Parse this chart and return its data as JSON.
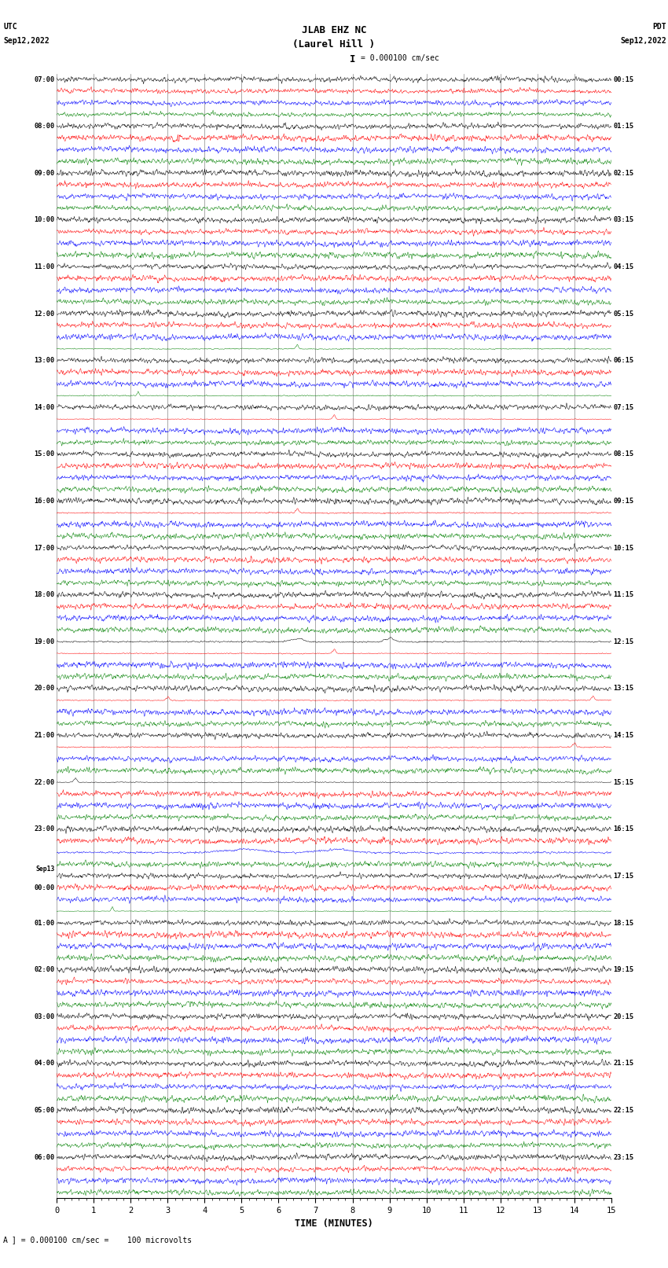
{
  "title_line1": "JLAB EHZ NC",
  "title_line2": "(Laurel Hill )",
  "scale_label": "= 0.000100 cm/sec",
  "left_top": "UTC",
  "left_date": "Sep12,2022",
  "right_top": "PDT",
  "right_date": "Sep12,2022",
  "xlabel": "TIME (MINUTES)",
  "bottom_note": "= 0.000100 cm/sec =    100 microvolts",
  "xmin": 0,
  "xmax": 15,
  "xticks": [
    0,
    1,
    2,
    3,
    4,
    5,
    6,
    7,
    8,
    9,
    10,
    11,
    12,
    13,
    14,
    15
  ],
  "trace_colors": [
    "black",
    "red",
    "blue",
    "green"
  ],
  "bg_color": "white",
  "grid_color": "#888888",
  "num_rows": 96,
  "noise_amplitude": 0.12,
  "fig_width": 8.5,
  "fig_height": 16.13,
  "dpi": 100,
  "row_times_left": [
    "07:00",
    "",
    "",
    "",
    "08:00",
    "",
    "",
    "",
    "09:00",
    "",
    "",
    "",
    "10:00",
    "",
    "",
    "",
    "11:00",
    "",
    "",
    "",
    "12:00",
    "",
    "",
    "",
    "13:00",
    "",
    "",
    "",
    "14:00",
    "",
    "",
    "",
    "15:00",
    "",
    "",
    "",
    "16:00",
    "",
    "",
    "",
    "17:00",
    "",
    "",
    "",
    "18:00",
    "",
    "",
    "",
    "19:00",
    "",
    "",
    "",
    "20:00",
    "",
    "",
    "",
    "21:00",
    "",
    "",
    "",
    "22:00",
    "",
    "",
    "",
    "23:00",
    "",
    "",
    "",
    "Sep13",
    "00:00",
    "",
    "",
    "01:00",
    "",
    "",
    "",
    "02:00",
    "",
    "",
    "",
    "03:00",
    "",
    "",
    "",
    "04:00",
    "",
    "",
    "",
    "05:00",
    "",
    "",
    "",
    "06:00",
    "",
    "",
    ""
  ],
  "row_times_right": [
    "00:15",
    "",
    "",
    "",
    "01:15",
    "",
    "",
    "",
    "02:15",
    "",
    "",
    "",
    "03:15",
    "",
    "",
    "",
    "04:15",
    "",
    "",
    "",
    "05:15",
    "",
    "",
    "",
    "06:15",
    "",
    "",
    "",
    "07:15",
    "",
    "",
    "",
    "08:15",
    "",
    "",
    "",
    "09:15",
    "",
    "",
    "",
    "10:15",
    "",
    "",
    "",
    "11:15",
    "",
    "",
    "",
    "12:15",
    "",
    "",
    "",
    "13:15",
    "",
    "",
    "",
    "14:15",
    "",
    "",
    "",
    "15:15",
    "",
    "",
    "",
    "16:15",
    "",
    "",
    "",
    "17:15",
    "",
    "",
    "",
    "18:15",
    "",
    "",
    "",
    "19:15",
    "",
    "",
    "",
    "20:15",
    "",
    "",
    "",
    "21:15",
    "",
    "",
    "",
    "22:15",
    "",
    "",
    "",
    "23:15",
    "",
    "",
    ""
  ]
}
